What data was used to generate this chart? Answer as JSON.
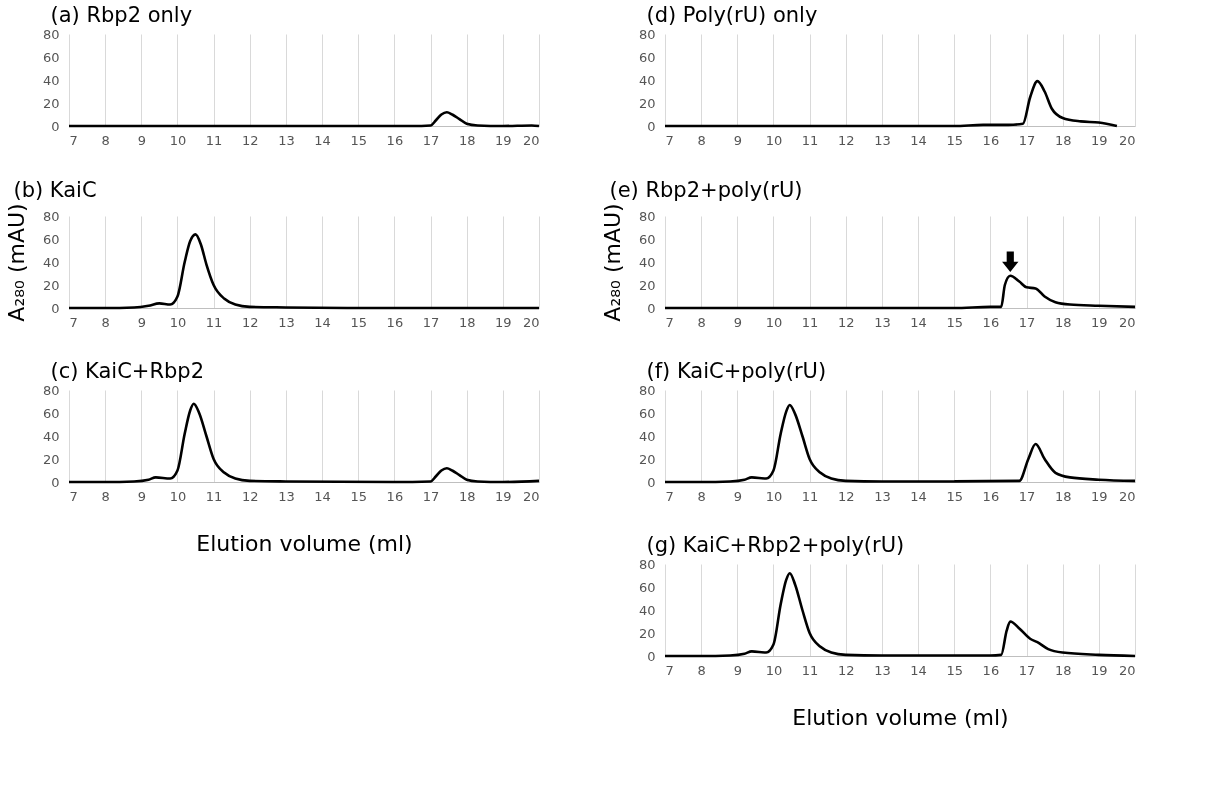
{
  "chart_data": [
    {
      "type": "line",
      "title": "(a) Rbp2 only",
      "x": [
        7,
        15.8,
        16.5,
        17,
        17.15,
        17.3,
        17.45,
        17.6,
        17.8,
        18,
        18.3,
        19,
        19.8,
        20
      ],
      "values": [
        0,
        0,
        0,
        0.5,
        5,
        10,
        12,
        10,
        6,
        2,
        0.5,
        0,
        0.5,
        0
      ],
      "color": "#000000",
      "xlim": [
        7,
        20
      ],
      "xticks": [
        7,
        8,
        9,
        10,
        11,
        12,
        13,
        14,
        15,
        16,
        17,
        18,
        19,
        20
      ],
      "ylim": [
        0,
        80
      ],
      "yticks": [
        0,
        20,
        40,
        60,
        80
      ],
      "grid": "x"
    },
    {
      "type": "line",
      "title": "(b) KaiC",
      "ylabel": "A₂₈₀ (mAU)",
      "x": [
        7,
        8,
        8.8,
        9.2,
        9.5,
        9.8,
        10.0,
        10.2,
        10.35,
        10.5,
        10.65,
        10.8,
        11.0,
        11.3,
        11.6,
        12,
        13,
        15,
        20
      ],
      "values": [
        0,
        0,
        0.5,
        2,
        4,
        3,
        10,
        40,
        58,
        64,
        55,
        38,
        20,
        8,
        3,
        1,
        0.5,
        0,
        0
      ],
      "color": "#000000",
      "xlim": [
        7,
        20
      ],
      "xticks": [
        7,
        8,
        9,
        10,
        11,
        12,
        13,
        14,
        15,
        16,
        17,
        18,
        19,
        20
      ],
      "ylim": [
        0,
        80
      ],
      "yticks": [
        0,
        20,
        40,
        60,
        80
      ],
      "grid": "x"
    },
    {
      "type": "line",
      "title": "(c) KaiC+Rbp2",
      "xlabel": "Elution volume (ml)",
      "x": [
        7,
        8,
        8.8,
        9.2,
        9.4,
        9.8,
        10.0,
        10.2,
        10.35,
        10.45,
        10.6,
        10.8,
        11.0,
        11.3,
        11.6,
        12,
        13,
        16,
        17,
        17.15,
        17.3,
        17.45,
        17.6,
        17.8,
        18,
        18.3,
        19,
        20
      ],
      "values": [
        0,
        0,
        0.5,
        2,
        4,
        3,
        10,
        42,
        62,
        68,
        60,
        40,
        20,
        8,
        3,
        1,
        0.5,
        0,
        0.5,
        5,
        10,
        12,
        10,
        6,
        2,
        0.5,
        0,
        1
      ],
      "color": "#000000",
      "xlim": [
        7,
        20
      ],
      "xticks": [
        7,
        8,
        9,
        10,
        11,
        12,
        13,
        14,
        15,
        16,
        17,
        18,
        19,
        20
      ],
      "ylim": [
        0,
        80
      ],
      "yticks": [
        0,
        20,
        40,
        60,
        80
      ],
      "grid": "x"
    },
    {
      "type": "line",
      "title": "(d) Poly(rU) only",
      "x": [
        7,
        15,
        15.8,
        16.5,
        16.9,
        17.1,
        17.3,
        17.5,
        17.7,
        18,
        18.5,
        19,
        19.5
      ],
      "values": [
        0,
        0,
        1,
        1,
        2,
        25,
        39,
        30,
        15,
        7,
        4,
        3,
        0
      ],
      "color": "#000000",
      "xlim": [
        7,
        20
      ],
      "xticks": [
        7,
        8,
        9,
        10,
        11,
        12,
        13,
        14,
        15,
        16,
        17,
        18,
        19,
        20
      ],
      "ylim": [
        0,
        80
      ],
      "yticks": [
        0,
        20,
        40,
        60,
        80
      ],
      "grid": "x"
    },
    {
      "type": "line",
      "title": "(e) Rbp2+poly(rU)",
      "ylabel": "A₂₈₀ (mAU)",
      "x": [
        7,
        15,
        16,
        16.3,
        16.4,
        16.55,
        16.8,
        17.0,
        17.25,
        17.5,
        17.8,
        18.2,
        19,
        20
      ],
      "values": [
        0,
        0,
        1,
        1,
        20,
        28,
        23,
        18,
        17,
        10,
        5,
        3,
        2,
        1
      ],
      "color": "#000000",
      "xlim": [
        7,
        20
      ],
      "xticks": [
        7,
        8,
        9,
        10,
        11,
        12,
        13,
        14,
        15,
        16,
        17,
        18,
        19,
        20
      ],
      "ylim": [
        0,
        80
      ],
      "yticks": [
        0,
        20,
        40,
        60,
        80
      ],
      "grid": "x"
    },
    {
      "type": "line",
      "title": "(f) KaiC+poly(rU)",
      "x": [
        7,
        8,
        8.8,
        9.2,
        9.4,
        9.8,
        10.0,
        10.2,
        10.35,
        10.45,
        10.6,
        10.8,
        11.0,
        11.3,
        11.6,
        12,
        13,
        15,
        16.8,
        17.05,
        17.25,
        17.5,
        17.8,
        18.2,
        19,
        20
      ],
      "values": [
        0,
        0,
        0.5,
        2,
        4,
        3,
        10,
        42,
        61,
        67,
        59,
        40,
        20,
        8,
        3,
        1,
        0.5,
        0.5,
        1,
        20,
        33,
        20,
        8,
        4,
        2,
        1
      ],
      "color": "#000000",
      "xlim": [
        7,
        20
      ],
      "xticks": [
        7,
        8,
        9,
        10,
        11,
        12,
        13,
        14,
        15,
        16,
        17,
        18,
        19,
        20
      ],
      "ylim": [
        0,
        80
      ],
      "yticks": [
        0,
        20,
        40,
        60,
        80
      ],
      "grid": "x"
    },
    {
      "type": "line",
      "title": "(g) KaiC+Rbp2+poly(rU)",
      "xlabel": "Elution volume (ml)",
      "x": [
        7,
        8,
        8.8,
        9.2,
        9.4,
        9.8,
        10.0,
        10.2,
        10.35,
        10.45,
        10.6,
        10.8,
        11.0,
        11.3,
        11.6,
        12,
        13,
        16,
        16.3,
        16.45,
        16.55,
        16.8,
        17.1,
        17.3,
        17.6,
        18,
        19,
        20
      ],
      "values": [
        0,
        0,
        0.5,
        2,
        4,
        3,
        10,
        45,
        66,
        72,
        62,
        40,
        20,
        8,
        3,
        1,
        0.5,
        0.5,
        1,
        22,
        30,
        24,
        15,
        12,
        6,
        3,
        1,
        0
      ],
      "color": "#000000",
      "xlim": [
        7,
        20
      ],
      "xticks": [
        7,
        8,
        9,
        10,
        11,
        12,
        13,
        14,
        15,
        16,
        17,
        18,
        19,
        20
      ],
      "ylim": [
        0,
        80
      ],
      "yticks": [
        0,
        20,
        40,
        60,
        80
      ],
      "grid": "x"
    }
  ]
}
